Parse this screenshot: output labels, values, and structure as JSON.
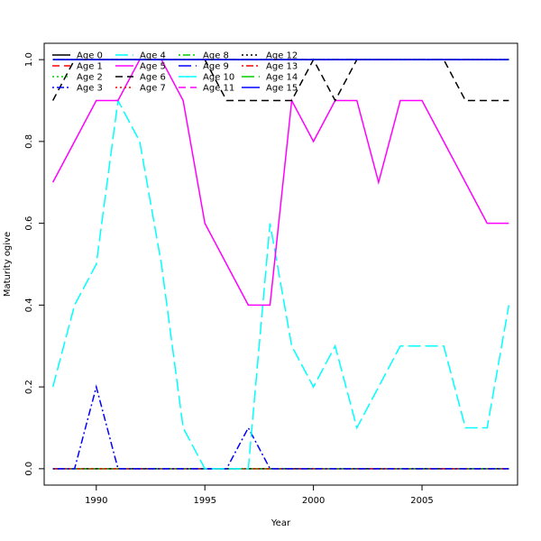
{
  "chart_data": {
    "type": "line",
    "title": "",
    "xlabel": "Year",
    "ylabel": "Maturity ogive",
    "xlim": [
      1987.6,
      2009.4
    ],
    "ylim": [
      -0.04,
      1.04
    ],
    "xticks": [
      1990,
      1995,
      2000,
      2005
    ],
    "yticks": [
      0.0,
      0.2,
      0.4,
      0.6,
      0.8,
      1.0
    ],
    "ytick_labels": [
      "0.0",
      "0.2",
      "0.4",
      "0.6",
      "0.8",
      "1.0"
    ],
    "legend_position": "top-left",
    "x": [
      1988,
      1989,
      1990,
      1991,
      1992,
      1993,
      1994,
      1995,
      1996,
      1997,
      1998,
      1999,
      2000,
      2001,
      2002,
      2003,
      2004,
      2005,
      2006,
      2007,
      2008,
      2009
    ],
    "series": [
      {
        "name": "Age 0",
        "color": "#000000",
        "dash": "solid",
        "values": [
          0,
          0,
          0,
          0,
          0,
          0,
          0,
          0,
          0,
          0,
          0,
          0,
          0,
          0,
          0,
          0,
          0,
          0,
          0,
          0,
          0,
          0
        ]
      },
      {
        "name": "Age 1",
        "color": "#ff0000",
        "dash": "dashed",
        "values": [
          0,
          0,
          0,
          0,
          0,
          0,
          0,
          0,
          0,
          0,
          0,
          0,
          0,
          0,
          0,
          0,
          0,
          0,
          0,
          0,
          0,
          0
        ]
      },
      {
        "name": "Age 2",
        "color": "#00cd00",
        "dash": "dotted",
        "values": [
          0,
          0,
          0,
          0,
          0,
          0,
          0,
          0,
          0,
          0,
          0,
          0,
          0,
          0,
          0,
          0,
          0,
          0,
          0,
          0,
          0,
          0
        ]
      },
      {
        "name": "Age 3",
        "color": "#0000ff",
        "dash": "dotdash",
        "values": [
          0,
          0,
          0.2,
          0,
          0,
          0,
          0,
          0,
          0,
          0.1,
          0,
          0,
          0,
          0,
          0,
          0,
          0,
          0,
          0,
          0,
          0,
          0
        ]
      },
      {
        "name": "Age 4",
        "color": "#00ffff",
        "dash": "longdash",
        "values": [
          0.2,
          0.4,
          0.5,
          0.9,
          0.8,
          0.5,
          0.1,
          0,
          0,
          0,
          0.6,
          0.3,
          0.2,
          0.3,
          0.1,
          0.2,
          0.3,
          0.3,
          0.3,
          0.1,
          0.1,
          0.4
        ]
      },
      {
        "name": "Age 5",
        "color": "#ff00ff",
        "dash": "solid",
        "values": [
          0.7,
          0.8,
          0.9,
          0.9,
          1.0,
          1.0,
          0.9,
          0.6,
          0.5,
          0.4,
          0.4,
          0.9,
          0.8,
          0.9,
          0.9,
          0.7,
          0.9,
          0.9,
          0.8,
          0.7,
          0.6,
          0.6
        ]
      },
      {
        "name": "Age 6",
        "color": "#000000",
        "dash": "dashed",
        "values": [
          0.9,
          1.0,
          1.0,
          1.0,
          1.0,
          1.0,
          1.0,
          1.0,
          0.9,
          0.9,
          0.9,
          0.9,
          1.0,
          0.9,
          1.0,
          1.0,
          1.0,
          1.0,
          1.0,
          0.9,
          0.9,
          0.9
        ]
      },
      {
        "name": "Age 7",
        "color": "#ff0000",
        "dash": "dotted",
        "values": [
          1,
          1,
          1,
          1,
          1,
          1,
          1,
          1,
          1,
          1,
          1,
          1,
          1,
          1,
          1,
          1,
          1,
          1,
          1,
          1,
          1,
          1
        ]
      },
      {
        "name": "Age 8",
        "color": "#00cd00",
        "dash": "dotdash",
        "values": [
          1,
          1,
          1,
          1,
          1,
          1,
          1,
          1,
          1,
          1,
          1,
          1,
          1,
          1,
          1,
          1,
          1,
          1,
          1,
          1,
          1,
          1
        ]
      },
      {
        "name": "Age 9",
        "color": "#0000ff",
        "dash": "longdash",
        "values": [
          1,
          1,
          1,
          1,
          1,
          1,
          1,
          1,
          1,
          1,
          1,
          1,
          1,
          1,
          1,
          1,
          1,
          1,
          1,
          1,
          1,
          1
        ]
      },
      {
        "name": "Age 10",
        "color": "#00ffff",
        "dash": "solid",
        "values": [
          1,
          1,
          1,
          1,
          1,
          1,
          1,
          1,
          1,
          1,
          1,
          1,
          1,
          1,
          1,
          1,
          1,
          1,
          1,
          1,
          1,
          1
        ]
      },
      {
        "name": "Age 11",
        "color": "#ff00ff",
        "dash": "dashed",
        "values": [
          1,
          1,
          1,
          1,
          1,
          1,
          1,
          1,
          1,
          1,
          1,
          1,
          1,
          1,
          1,
          1,
          1,
          1,
          1,
          1,
          1,
          1
        ]
      },
      {
        "name": "Age 12",
        "color": "#000000",
        "dash": "dotted",
        "values": [
          1,
          1,
          1,
          1,
          1,
          1,
          1,
          1,
          1,
          1,
          1,
          1,
          1,
          1,
          1,
          1,
          1,
          1,
          1,
          1,
          1,
          1
        ]
      },
      {
        "name": "Age 13",
        "color": "#ff0000",
        "dash": "dotdash",
        "values": [
          1,
          1,
          1,
          1,
          1,
          1,
          1,
          1,
          1,
          1,
          1,
          1,
          1,
          1,
          1,
          1,
          1,
          1,
          1,
          1,
          1,
          1
        ]
      },
      {
        "name": "Age 14",
        "color": "#00cd00",
        "dash": "longdash",
        "values": [
          1,
          1,
          1,
          1,
          1,
          1,
          1,
          1,
          1,
          1,
          1,
          1,
          1,
          1,
          1,
          1,
          1,
          1,
          1,
          1,
          1,
          1
        ]
      },
      {
        "name": "Age 15",
        "color": "#0000ff",
        "dash": "solid",
        "values": [
          1,
          1,
          1,
          1,
          1,
          1,
          1,
          1,
          1,
          1,
          1,
          1,
          1,
          1,
          1,
          1,
          1,
          1,
          1,
          1,
          1,
          1
        ]
      }
    ]
  }
}
